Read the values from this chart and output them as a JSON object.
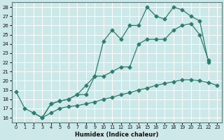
{
  "xlabel": "Humidex (Indice chaleur)",
  "bg_color": "#cde8e8",
  "line_color": "#2e7d6e",
  "grid_color": "#ffffff",
  "xlim": [
    -0.5,
    23.5
  ],
  "ylim": [
    15.5,
    28.5
  ],
  "yticks": [
    16,
    17,
    18,
    19,
    20,
    21,
    22,
    23,
    24,
    25,
    26,
    27,
    28
  ],
  "xticks": [
    0,
    1,
    2,
    3,
    4,
    5,
    6,
    7,
    8,
    9,
    10,
    11,
    12,
    13,
    14,
    15,
    16,
    17,
    18,
    19,
    20,
    21,
    22,
    23
  ],
  "line1_x": [
    0,
    1,
    2,
    3,
    4,
    5,
    6,
    7,
    8,
    9,
    10,
    11,
    12,
    13,
    14,
    15,
    16,
    17,
    18,
    19,
    20,
    21,
    22,
    23
  ],
  "line1_y": [
    18.8,
    17.0,
    16.5,
    16.0,
    16.5,
    17.0,
    17.2,
    17.3,
    17.5,
    17.7,
    18.0,
    18.2,
    18.5,
    18.7,
    19.0,
    19.2,
    19.5,
    19.7,
    19.9,
    20.1,
    20.1,
    20.0,
    19.8,
    19.5
  ],
  "line2_x": [
    2,
    3,
    4,
    5,
    6,
    7,
    8,
    9,
    10,
    11,
    12,
    13,
    14,
    15,
    16,
    17,
    18,
    19,
    20,
    21,
    22
  ],
  "line2_y": [
    16.5,
    16.0,
    17.5,
    17.8,
    18.0,
    18.5,
    19.5,
    20.5,
    24.3,
    25.5,
    24.5,
    26.0,
    26.0,
    28.0,
    27.0,
    26.7,
    28.0,
    27.7,
    27.0,
    26.5,
    22.0
  ],
  "line3_x": [
    3,
    4,
    5,
    6,
    7,
    8,
    9,
    10,
    11,
    12,
    13,
    14,
    15,
    16,
    17,
    18,
    19,
    20,
    21,
    22
  ],
  "line3_y": [
    16.0,
    17.5,
    17.8,
    18.0,
    18.5,
    18.5,
    20.5,
    20.5,
    21.0,
    21.5,
    21.5,
    24.0,
    24.5,
    24.5,
    24.5,
    25.5,
    26.0,
    26.2,
    25.0,
    22.2
  ]
}
